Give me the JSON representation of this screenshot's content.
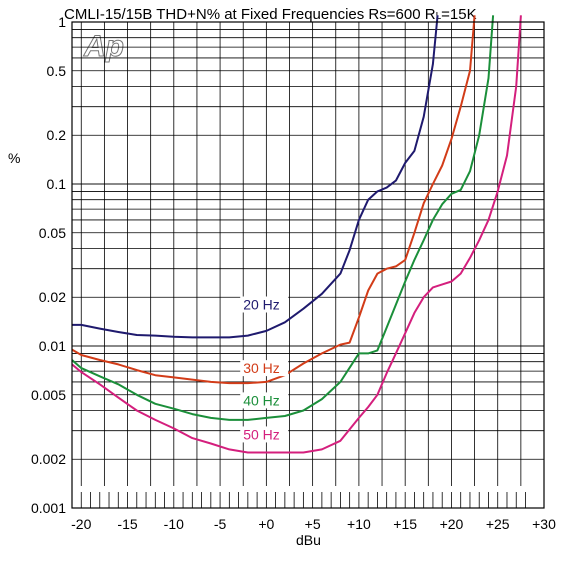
{
  "chart_data": {
    "type": "line",
    "title_main": "CMLI-15/15B THD+N% at Fixed Frequencies  Rs=600 R",
    "title_sub": "L",
    "title_tail": "=15K",
    "xlabel": "dBu",
    "ylabel": "%",
    "xlim": [
      -21,
      30
    ],
    "ylim": [
      0.001,
      1
    ],
    "y_scale": "log",
    "grid": true,
    "legend": "inline labels",
    "x_ticks": [
      -20,
      -15,
      -10,
      -5,
      0,
      5,
      10,
      15,
      20,
      25,
      30
    ],
    "x_tick_labels": [
      "-20",
      "-15",
      "-10",
      "-5",
      "+0",
      "+5",
      "+10",
      "+15",
      "+20",
      "+25",
      "+30"
    ],
    "y_ticks": [
      0.001,
      0.002,
      0.005,
      0.01,
      0.02,
      0.05,
      0.1,
      0.2,
      0.5,
      1
    ],
    "y_tick_labels": [
      "0.001",
      "0.002",
      "0.005",
      "0.01",
      "0.02",
      "0.05",
      "0.1",
      "0.2",
      "0.5",
      "1"
    ],
    "series": [
      {
        "name": "20 Hz",
        "color": "#1f1a6e",
        "label_at": [
          -2.5,
          0.0168
        ],
        "x": [
          -21,
          -20,
          -18,
          -16,
          -14,
          -12,
          -10,
          -8,
          -6,
          -4,
          -2,
          0,
          2,
          4,
          6,
          8,
          9,
          10,
          11,
          12,
          13,
          14,
          15,
          16,
          17,
          18,
          18.5
        ],
        "y": [
          0.0135,
          0.0135,
          0.0128,
          0.0122,
          0.0117,
          0.0116,
          0.0114,
          0.0113,
          0.0113,
          0.0113,
          0.0116,
          0.0124,
          0.014,
          0.017,
          0.021,
          0.028,
          0.039,
          0.06,
          0.08,
          0.09,
          0.095,
          0.105,
          0.135,
          0.16,
          0.26,
          0.55,
          1.1
        ]
      },
      {
        "name": "30 Hz",
        "color": "#d23c18",
        "label_at": [
          -2.5,
          0.0068
        ],
        "x": [
          -21,
          -20,
          -18,
          -16,
          -14,
          -12,
          -10,
          -8,
          -6,
          -4,
          -2,
          0,
          2,
          4,
          6,
          8,
          9,
          10,
          11,
          12,
          13,
          14,
          15,
          16,
          17,
          18,
          19,
          20,
          21,
          22,
          22.5
        ],
        "y": [
          0.0095,
          0.0088,
          0.0082,
          0.0077,
          0.0071,
          0.0066,
          0.0064,
          0.0062,
          0.006,
          0.0059,
          0.0059,
          0.006,
          0.0066,
          0.0078,
          0.009,
          0.0102,
          0.0105,
          0.015,
          0.022,
          0.028,
          0.03,
          0.031,
          0.034,
          0.05,
          0.076,
          0.1,
          0.13,
          0.19,
          0.3,
          0.5,
          1.1
        ]
      },
      {
        "name": "40 Hz",
        "color": "#1b8f3a",
        "label_at": [
          -2.5,
          0.0043
        ],
        "x": [
          -21,
          -20,
          -18,
          -16,
          -14,
          -12,
          -10,
          -8,
          -6,
          -4,
          -2,
          0,
          2,
          4,
          6,
          8,
          10,
          11,
          12,
          13,
          14,
          15,
          16,
          17,
          18,
          19,
          20,
          21,
          22,
          23,
          24,
          24.5
        ],
        "y": [
          0.0082,
          0.0073,
          0.0065,
          0.0058,
          0.005,
          0.0044,
          0.0041,
          0.0038,
          0.0036,
          0.0035,
          0.0035,
          0.0036,
          0.0037,
          0.004,
          0.0047,
          0.006,
          0.009,
          0.009,
          0.0094,
          0.013,
          0.018,
          0.025,
          0.034,
          0.045,
          0.06,
          0.075,
          0.087,
          0.092,
          0.12,
          0.2,
          0.45,
          1.1
        ]
      },
      {
        "name": "50 Hz",
        "color": "#d41f7d",
        "label_at": [
          -2.5,
          0.00265
        ],
        "x": [
          -21,
          -20,
          -18,
          -16,
          -14,
          -12,
          -10,
          -8,
          -6,
          -4,
          -2,
          0,
          2,
          4,
          6,
          8,
          10,
          11,
          12,
          13,
          14,
          15,
          16,
          17,
          18,
          19,
          20,
          21,
          22,
          23,
          24,
          25,
          26,
          27,
          27.5
        ],
        "y": [
          0.0077,
          0.0069,
          0.0058,
          0.0048,
          0.004,
          0.0035,
          0.0031,
          0.0027,
          0.0025,
          0.0023,
          0.0022,
          0.0022,
          0.0022,
          0.0022,
          0.0023,
          0.0026,
          0.0036,
          0.0042,
          0.005,
          0.0068,
          0.009,
          0.012,
          0.016,
          0.02,
          0.023,
          0.024,
          0.025,
          0.028,
          0.035,
          0.045,
          0.06,
          0.09,
          0.15,
          0.4,
          1.1
        ]
      }
    ]
  }
}
